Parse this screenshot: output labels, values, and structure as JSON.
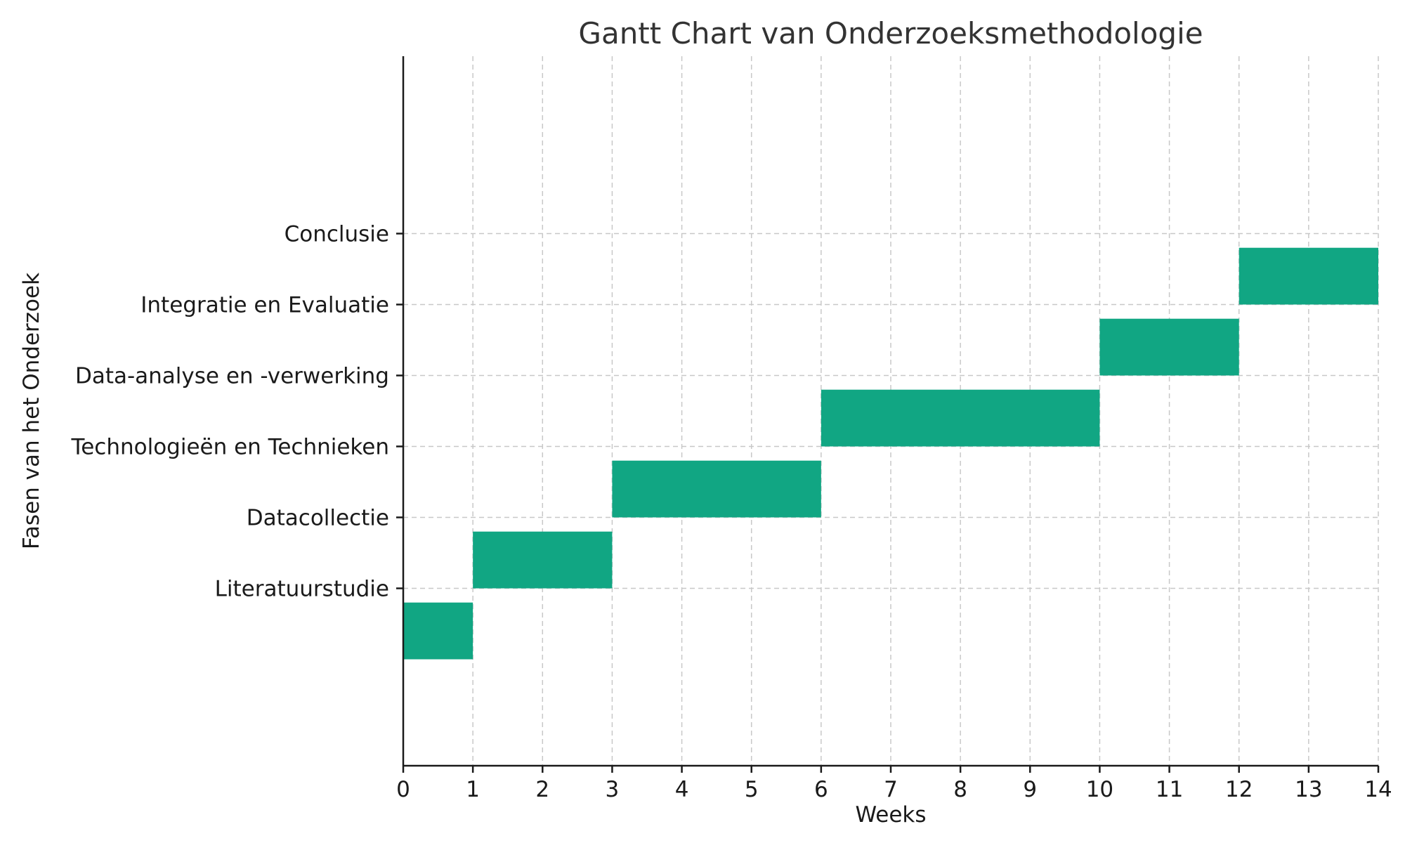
{
  "chart_data": {
    "type": "bar",
    "orientation": "horizontal",
    "title": "Gantt Chart van Onderzoeksmethodologie",
    "xlabel": "Weeks",
    "ylabel": "Fasen van het Onderzoek",
    "xlim": [
      0,
      14
    ],
    "ylim": [
      -2.5,
      7.5
    ],
    "x_ticks": [
      0,
      1,
      2,
      3,
      4,
      5,
      6,
      7,
      8,
      9,
      10,
      11,
      12,
      13,
      14
    ],
    "y_ticks": [
      0,
      1,
      2,
      3,
      4,
      5
    ],
    "categories": [
      "Literatuurstudie",
      "Datacollectie",
      "Technologieën en Technieken",
      "Data-analyse en -verwerking",
      "Integratie en Evaluatie",
      "Conclusie"
    ],
    "tasks": [
      {
        "start": 0,
        "duration": 1,
        "y_bottom": -1,
        "y_top": -0.2
      },
      {
        "start": 1,
        "duration": 2,
        "y_bottom": 0,
        "y_top": 0.8
      },
      {
        "start": 3,
        "duration": 3,
        "y_bottom": 1,
        "y_top": 1.8
      },
      {
        "start": 6,
        "duration": 4,
        "y_bottom": 2,
        "y_top": 2.8
      },
      {
        "start": 10,
        "duration": 2,
        "y_bottom": 3,
        "y_top": 3.8
      },
      {
        "start": 12,
        "duration": 2,
        "y_bottom": 4,
        "y_top": 4.8
      }
    ],
    "bar_color": "#11a683",
    "grid": true,
    "legend": "none"
  }
}
